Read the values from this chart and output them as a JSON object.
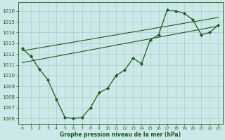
{
  "title": "Graphe pression niveau de la mer (hPa)",
  "bg_color": "#cce8e8",
  "grid_color": "#aacccc",
  "line_color": "#1a5c1a",
  "marker_color": "#1a5c1a",
  "xlim": [
    -0.5,
    23.5
  ],
  "ylim": [
    1005.5,
    1016.8
  ],
  "yticks": [
    1006,
    1007,
    1008,
    1009,
    1010,
    1011,
    1012,
    1013,
    1014,
    1015,
    1016
  ],
  "xticks": [
    0,
    1,
    2,
    3,
    4,
    5,
    6,
    7,
    8,
    9,
    10,
    11,
    12,
    13,
    14,
    15,
    16,
    17,
    18,
    19,
    20,
    21,
    22,
    23
  ],
  "series1_x": [
    0,
    1,
    2,
    3,
    4,
    5,
    6,
    7,
    8,
    9,
    10,
    11,
    12,
    13,
    14,
    15,
    16,
    17,
    18,
    19,
    20,
    21,
    22,
    23
  ],
  "series1_y": [
    1012.5,
    1011.8,
    1010.6,
    1009.6,
    1007.8,
    1006.1,
    1006.0,
    1006.1,
    1007.0,
    1008.4,
    1008.8,
    1010.0,
    1010.5,
    1011.6,
    1011.1,
    1013.3,
    1013.8,
    1016.1,
    1016.0,
    1015.8,
    1015.2,
    1013.8,
    1014.0,
    1014.7
  ],
  "trend1_x": [
    0,
    23
  ],
  "trend1_y": [
    1011.2,
    1014.6
  ],
  "trend2_x": [
    0,
    23
  ],
  "trend2_y": [
    1012.3,
    1015.4
  ]
}
